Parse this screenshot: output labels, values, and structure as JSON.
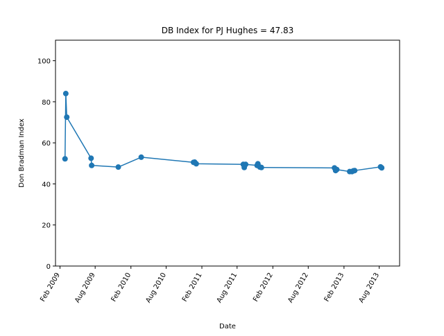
{
  "chart_data": {
    "type": "line",
    "title": "DB Index for PJ Hughes = 47.83",
    "xlabel": "Date",
    "ylabel": "Don Bradman Index",
    "ylim": [
      0,
      110
    ],
    "xlim": [
      "2009-01-09",
      "2013-11-14"
    ],
    "y_ticks": [
      0,
      20,
      40,
      60,
      80,
      100
    ],
    "x_ticks": [
      {
        "date": "2009-02-01",
        "label": "Feb 2009"
      },
      {
        "date": "2009-08-01",
        "label": "Aug 2009"
      },
      {
        "date": "2010-02-01",
        "label": "Feb 2010"
      },
      {
        "date": "2010-08-01",
        "label": "Aug 2010"
      },
      {
        "date": "2011-02-01",
        "label": "Feb 2011"
      },
      {
        "date": "2011-08-01",
        "label": "Aug 2011"
      },
      {
        "date": "2012-02-01",
        "label": "Feb 2012"
      },
      {
        "date": "2012-08-01",
        "label": "Aug 2012"
      },
      {
        "date": "2013-02-01",
        "label": "Feb 2013"
      },
      {
        "date": "2013-08-01",
        "label": "Aug 2013"
      }
    ],
    "grid": false,
    "color": "#1f77b4",
    "series": [
      {
        "points": [
          {
            "x": "2009-02-27",
            "y": 52.2
          },
          {
            "x": "2009-03-03",
            "y": 84.0
          },
          {
            "x": "2009-03-08",
            "y": 72.5
          },
          {
            "x": "2009-07-11",
            "y": 52.5
          },
          {
            "x": "2009-07-14",
            "y": 49.0
          },
          {
            "x": "2009-11-28",
            "y": 48.2
          },
          {
            "x": "2010-03-26",
            "y": 53.0
          },
          {
            "x": "2010-12-20",
            "y": 50.5
          },
          {
            "x": "2010-12-26",
            "y": 50.6
          },
          {
            "x": "2011-01-03",
            "y": 49.8
          },
          {
            "x": "2011-09-02",
            "y": 49.5
          },
          {
            "x": "2011-09-07",
            "y": 48.0
          },
          {
            "x": "2011-09-14",
            "y": 49.5
          },
          {
            "x": "2011-11-12",
            "y": 49.0
          },
          {
            "x": "2011-11-16",
            "y": 49.8
          },
          {
            "x": "2011-11-26",
            "y": 48.2
          },
          {
            "x": "2011-12-04",
            "y": 48.0
          },
          {
            "x": "2012-12-14",
            "y": 47.8
          },
          {
            "x": "2012-12-20",
            "y": 46.5
          },
          {
            "x": "2012-12-26",
            "y": 47.0
          },
          {
            "x": "2013-03-02",
            "y": 46.0
          },
          {
            "x": "2013-03-14",
            "y": 46.0
          },
          {
            "x": "2013-03-22",
            "y": 46.4
          },
          {
            "x": "2013-03-28",
            "y": 46.5
          },
          {
            "x": "2013-08-08",
            "y": 48.3
          },
          {
            "x": "2013-08-14",
            "y": 47.83
          }
        ]
      }
    ]
  }
}
